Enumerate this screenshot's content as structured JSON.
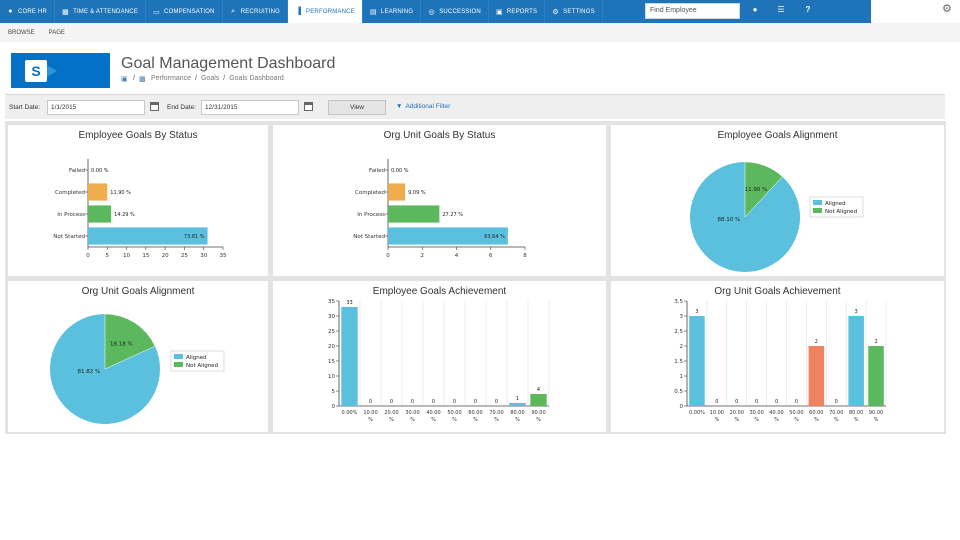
{
  "nav": {
    "tabs": [
      {
        "label": "CORE HR",
        "icon": "user-icon",
        "active": false
      },
      {
        "label": "TIME & ATTENDANCE",
        "icon": "calendar-icon",
        "active": false
      },
      {
        "label": "COMPENSATION",
        "icon": "money-icon",
        "active": false
      },
      {
        "label": "RECRUITING",
        "icon": "search-icon",
        "active": false
      },
      {
        "label": "PERFORMANCE",
        "icon": "bar-chart-icon",
        "active": true
      },
      {
        "label": "LEARNING",
        "icon": "book-icon",
        "active": false
      },
      {
        "label": "SUCCESSION",
        "icon": "people-icon",
        "active": false
      },
      {
        "label": "REPORTS",
        "icon": "report-icon",
        "active": false
      },
      {
        "label": "SETTINGS",
        "icon": "gear-icon",
        "active": false
      }
    ],
    "find_employee": "Find Employee",
    "help": "?"
  },
  "ribbon": {
    "browse": "BROWSE",
    "page": "PAGE"
  },
  "header": {
    "title": "Goal Management Dashboard",
    "breadcrumb": [
      "Performance",
      "Goals",
      "Goals Dashboard"
    ],
    "sep": "/"
  },
  "filter": {
    "start_label": "Start Date:",
    "start_value": "1/1/2015",
    "end_label": "End Date:",
    "end_value": "12/31/2015",
    "view_label": "View",
    "additional_filter": "Additional Filter"
  },
  "colors": {
    "brand": "#1e73b9",
    "blue": "#5bc0de",
    "green": "#5cb85c",
    "orange": "#f0ad4e",
    "red": "#f0835f"
  },
  "panels": {
    "emp_status_title": "Employee Goals By Status",
    "org_status_title": "Org Unit Goals By Status",
    "emp_align_title": "Employee Goals Alignment",
    "org_align_title": "Org Unit Goals Alignment",
    "emp_ach_title": "Employee Goals Achievement",
    "org_ach_title": "Org Unit Goals Achievement"
  },
  "chart_data": [
    {
      "type": "bar",
      "orientation": "horizontal",
      "title": "Employee Goals By Status",
      "categories": [
        "Failed",
        "Completed",
        "In Process",
        "Not Started"
      ],
      "values": [
        0,
        5,
        6,
        31
      ],
      "labels": [
        "0.00 %",
        "11.90 %",
        "14.29 %",
        "73.81 %"
      ],
      "colors": [
        "#5bc0de",
        "#f0ad4e",
        "#5cb85c",
        "#5bc0de"
      ],
      "xlim": [
        0,
        35
      ],
      "xticks": [
        "0",
        "5",
        "10",
        "15",
        "20",
        "25",
        "30",
        "35"
      ]
    },
    {
      "type": "bar",
      "orientation": "horizontal",
      "title": "Org Unit Goals By Status",
      "categories": [
        "Failed",
        "Completed",
        "In Process",
        "Not Started"
      ],
      "values": [
        0,
        1,
        3,
        7
      ],
      "labels": [
        "0.00 %",
        "9.09 %",
        "27.27 %",
        "63.64 %"
      ],
      "colors": [
        "#5bc0de",
        "#f0ad4e",
        "#5cb85c",
        "#5bc0de"
      ],
      "xlim": [
        0,
        8
      ],
      "xticks": [
        "0",
        "2",
        "4",
        "6",
        "8"
      ]
    },
    {
      "type": "pie",
      "title": "Employee Goals Alignment",
      "slices": [
        {
          "name": "Aligned",
          "value": 88.1,
          "label": "88.10 %",
          "color": "#5bc0de"
        },
        {
          "name": "Not Aligned",
          "value": 11.9,
          "label": "11.90 %",
          "color": "#5cb85c"
        }
      ],
      "legend": "right"
    },
    {
      "type": "pie",
      "title": "Org Unit Goals Alignment",
      "slices": [
        {
          "name": "Aligned",
          "value": 81.82,
          "label": "81.82 %",
          "color": "#5bc0de"
        },
        {
          "name": "Not Aligned",
          "value": 18.18,
          "label": "18.18 %",
          "color": "#5cb85c"
        }
      ],
      "legend": "right"
    },
    {
      "type": "bar",
      "title": "Employee Goals Achievement",
      "categories": [
        "0.00 %",
        "10.00 %",
        "20.00 %",
        "30.00 %",
        "40.00 %",
        "50.00 %",
        "60.00 %",
        "70.00 %",
        "80.00 %",
        "90.00 %"
      ],
      "values": [
        33,
        0,
        0,
        0,
        0,
        0,
        0,
        0,
        1,
        4
      ],
      "colors": [
        "#5bc0de",
        "#5bc0de",
        "#5bc0de",
        "#5bc0de",
        "#5bc0de",
        "#5bc0de",
        "#5bc0de",
        "#5bc0de",
        "#5bc0de",
        "#5cb85c"
      ],
      "ylim": [
        0,
        35
      ],
      "yticks": [
        "0",
        "5",
        "10",
        "15",
        "20",
        "25",
        "30",
        "35"
      ]
    },
    {
      "type": "bar",
      "title": "Org Unit Goals Achievement",
      "categories": [
        "0.00 %",
        "10.00 %",
        "20.00 %",
        "30.00 %",
        "40.00 %",
        "50.00 %",
        "60.00 %",
        "70.00 %",
        "80.00 %",
        "90.00 %"
      ],
      "values": [
        3,
        0,
        0,
        0,
        0,
        0,
        2,
        0,
        3,
        2
      ],
      "colors": [
        "#5bc0de",
        "#5bc0de",
        "#5bc0de",
        "#5bc0de",
        "#5bc0de",
        "#5bc0de",
        "#f0835f",
        "#5bc0de",
        "#5bc0de",
        "#5cb85c"
      ],
      "ylim": [
        0,
        3.5
      ],
      "yticks": [
        "0",
        "0.5",
        "1",
        "1.5",
        "2",
        "2.5",
        "3",
        "3.5"
      ]
    }
  ]
}
